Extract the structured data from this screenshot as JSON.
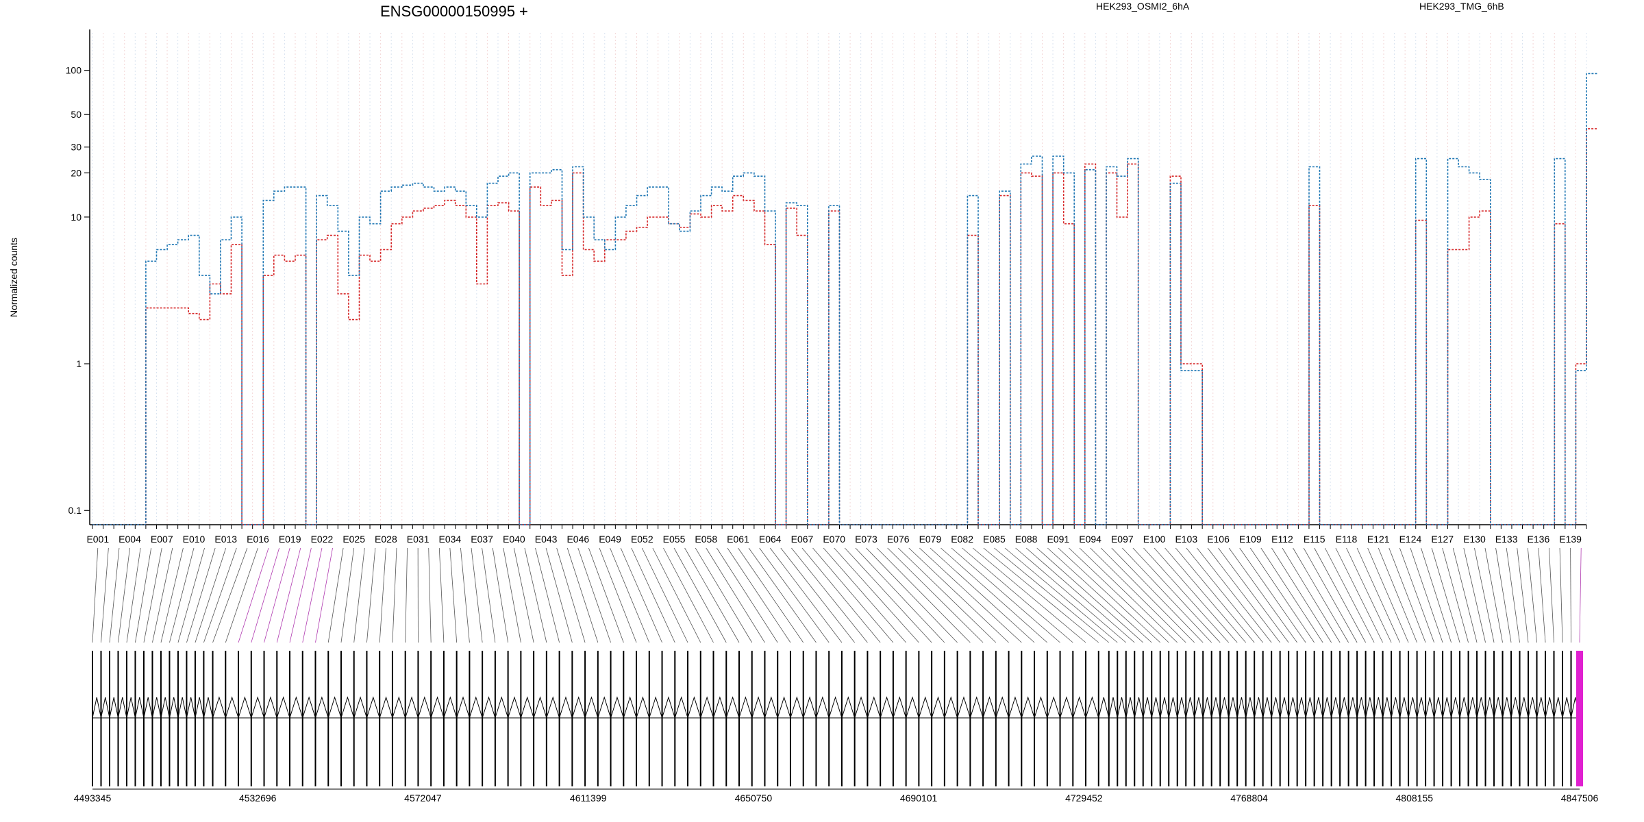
{
  "title": "ENSG00000150995 +",
  "legend": [
    {
      "name": "HEK293_OSMI2_6hA",
      "color": "#d62728"
    },
    {
      "name": "HEK293_TMG_6hB",
      "color": "#1f77b4"
    }
  ],
  "chart_data": {
    "type": "line",
    "title": "ENSG00000150995 +",
    "ylabel": "Normalized counts",
    "yscale": "log",
    "ylim": [
      0.08,
      180
    ],
    "yticks": [
      0.1,
      1,
      10,
      20,
      30,
      50,
      100
    ],
    "grid": "vertical dotted lines at each exon bin",
    "legend_position": "top",
    "exon_count": 140,
    "exon_ticks": [
      "E001",
      "E004",
      "E007",
      "E010",
      "E013",
      "E016",
      "E019",
      "E022",
      "E025",
      "E028",
      "E031",
      "E034",
      "E037",
      "E040",
      "E043",
      "E046",
      "E049",
      "E052",
      "E055",
      "E058",
      "E061",
      "E064",
      "E067",
      "E070",
      "E073",
      "E076",
      "E079",
      "E082",
      "E085",
      "E088",
      "E091",
      "E094",
      "E097",
      "E100",
      "E103",
      "E106",
      "E109",
      "E112",
      "E115",
      "E118",
      "E121",
      "E124",
      "E127",
      "E130",
      "E133",
      "E136",
      "E139"
    ],
    "series": [
      {
        "name": "HEK293_OSMI2_6hA",
        "color": "#d62728",
        "values": [
          0.08,
          0.08,
          0.08,
          0.08,
          0.08,
          2.4,
          2.4,
          2.4,
          2.4,
          2.2,
          2.0,
          3.5,
          3.0,
          6.5,
          0.08,
          0.08,
          4.0,
          5.5,
          5.0,
          5.5,
          0.08,
          7.0,
          7.5,
          3.0,
          2.0,
          5.5,
          5.0,
          6.0,
          9.0,
          10.0,
          11.0,
          11.5,
          12.0,
          13.0,
          12.0,
          10.0,
          3.5,
          12.0,
          12.5,
          11.0,
          0.08,
          16.0,
          12.0,
          13.0,
          4.0,
          20.0,
          6.0,
          5.0,
          7.0,
          7.0,
          8.0,
          8.5,
          10.0,
          10.0,
          9.0,
          8.5,
          10.5,
          10.0,
          12.0,
          11.0,
          14.0,
          13.0,
          11.0,
          6.5,
          0.08,
          11.5,
          7.5,
          0.08,
          0.08,
          11.0,
          0.08,
          0.08,
          0.08,
          0.08,
          0.08,
          0.08,
          0.08,
          0.08,
          0.08,
          0.08,
          0.08,
          0.08,
          7.5,
          0.08,
          0.08,
          14.0,
          0.08,
          20.0,
          19.0,
          0.08,
          20.0,
          9.0,
          0.08,
          23.0,
          0.08,
          20.0,
          10.0,
          23.0,
          0.08,
          0.08,
          0.08,
          19.0,
          1.0,
          1.0,
          0.08,
          0.08,
          0.08,
          0.08,
          0.08,
          0.08,
          0.08,
          0.08,
          0.08,
          0.08,
          12.0,
          0.08,
          0.08,
          0.08,
          0.08,
          0.08,
          0.08,
          0.08,
          0.08,
          0.08,
          9.5,
          0.08,
          0.08,
          6.0,
          6.0,
          10.0,
          11.0,
          0.08,
          0.08,
          0.08,
          0.08,
          0.08,
          0.08,
          9.0,
          0.08,
          1.0,
          40.0
        ]
      },
      {
        "name": "HEK293_TMG_6hB",
        "color": "#1f77b4",
        "values": [
          0.08,
          0.08,
          0.08,
          0.08,
          0.08,
          5.0,
          6.0,
          6.5,
          7.0,
          7.5,
          4.0,
          3.0,
          7.0,
          10.0,
          0.08,
          0.08,
          13.0,
          15.0,
          16.0,
          16.0,
          0.08,
          14.0,
          12.0,
          8.0,
          4.0,
          10.0,
          9.0,
          15.0,
          16.0,
          16.5,
          17.0,
          16.0,
          15.0,
          16.0,
          15.0,
          12.0,
          10.0,
          17.0,
          19.0,
          20.0,
          0.08,
          20.0,
          20.0,
          21.0,
          6.0,
          22.0,
          10.0,
          7.0,
          6.0,
          10.0,
          12.0,
          14.0,
          16.0,
          16.0,
          9.0,
          8.0,
          11.0,
          14.0,
          16.0,
          15.0,
          19.0,
          20.0,
          19.0,
          11.0,
          0.08,
          12.5,
          12.0,
          0.08,
          0.08,
          12.0,
          0.08,
          0.08,
          0.08,
          0.08,
          0.08,
          0.08,
          0.08,
          0.08,
          0.08,
          0.08,
          0.08,
          0.08,
          14.0,
          0.08,
          0.08,
          15.0,
          0.08,
          23.0,
          26.0,
          0.08,
          26.0,
          20.0,
          0.08,
          21.0,
          0.08,
          22.0,
          19.0,
          25.0,
          0.08,
          0.08,
          0.08,
          17.0,
          0.9,
          0.9,
          0.08,
          0.08,
          0.08,
          0.08,
          0.08,
          0.08,
          0.08,
          0.08,
          0.08,
          0.08,
          22.0,
          0.08,
          0.08,
          0.08,
          0.08,
          0.08,
          0.08,
          0.08,
          0.08,
          0.08,
          25.0,
          0.08,
          0.08,
          25.0,
          22.0,
          20.0,
          18.0,
          0.08,
          0.08,
          0.08,
          0.08,
          0.08,
          0.08,
          25.0,
          0.08,
          0.9,
          95.0
        ]
      }
    ],
    "genomic_axis_ticks": [
      "4493345",
      "4532696",
      "4572047",
      "4611399",
      "4650750",
      "4690101",
      "4729452",
      "4768804",
      "4808155",
      "4847506"
    ]
  }
}
